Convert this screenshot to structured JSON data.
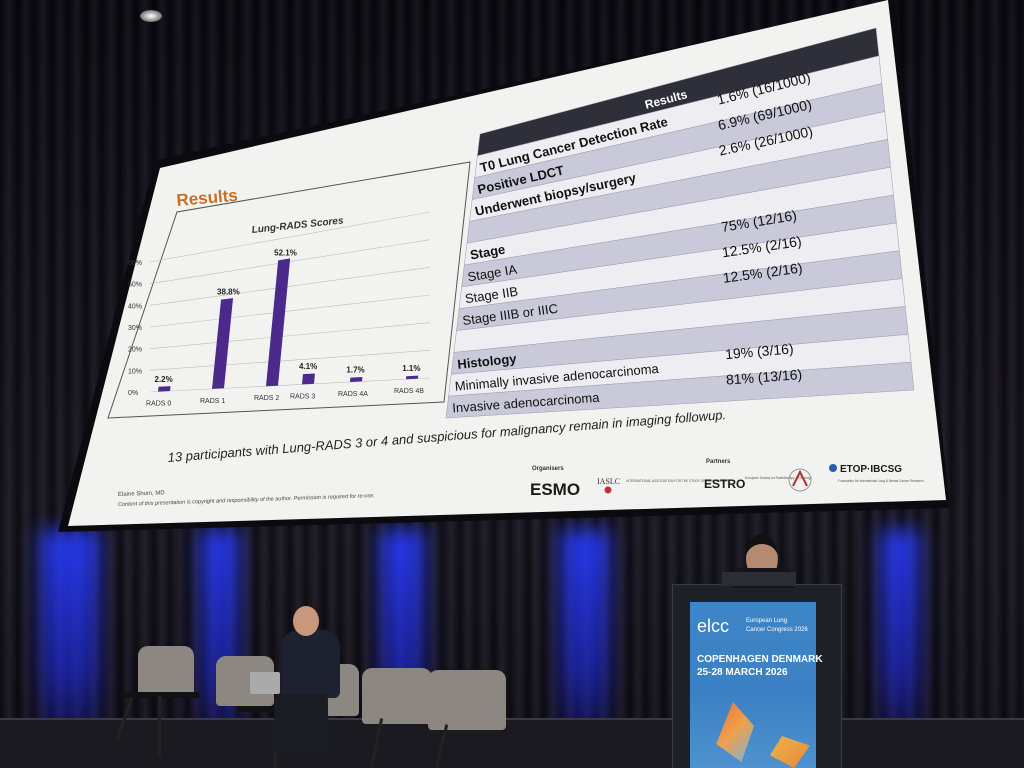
{
  "slide": {
    "section_title": "Results",
    "chart_title": "Lung-RADS Scores",
    "author": "Elaine Shum, MD",
    "copyright": "Content of this presentation is copyright and responsibility of the author. Permission is required for re-use.",
    "footnote": "13 participants with Lung-RADS 3 or 4 and suspicious for malignancy remain in imaging followup.",
    "organisers_label": "Organisers",
    "partners_label": "Partners",
    "logos": {
      "esmo": "ESMO",
      "iaslc": "IASLC",
      "iaslc_sub": "INTERNATIONAL ASSOCIATION FOR THE STUDY OF LUNG CANCER",
      "estro": "ESTRO",
      "estro_sub": "European Society for Radiotherapy & Oncology",
      "etop": "ETOP·IBCSG",
      "etop_sub": "Foundation for International Lung & Breast Cancer Research"
    },
    "table": {
      "header": "Results",
      "rows": [
        {
          "label": "T0 Lung Cancer Detection Rate",
          "value": "1.6% (16/1000)",
          "bold": true
        },
        {
          "label": "Positive LDCT",
          "value": "6.9% (69/1000)",
          "bold": true
        },
        {
          "label": "Underwent biopsy/surgery",
          "value": "2.6% (26/1000)",
          "bold": true
        },
        {
          "label": "",
          "value": "",
          "bold": false
        },
        {
          "label": "Stage",
          "value": "",
          "bold": true
        },
        {
          "label": "Stage IA",
          "value": "75% (12/16)",
          "bold": false
        },
        {
          "label": "Stage IIB",
          "value": "12.5% (2/16)",
          "bold": false
        },
        {
          "label": "Stage IIIB or IIIC",
          "value": "12.5% (2/16)",
          "bold": false
        },
        {
          "label": "",
          "value": "",
          "bold": false
        },
        {
          "label": "Histology",
          "value": "",
          "bold": true
        },
        {
          "label": "Minimally invasive adenocarcinoma",
          "value": "19% (3/16)",
          "bold": false
        },
        {
          "label": "Invasive adenocarcinoma",
          "value": "81% (13/16)",
          "bold": false
        }
      ]
    }
  },
  "chart_data": {
    "type": "bar",
    "title": "Lung-RADS Scores",
    "categories": [
      "RADS 0",
      "RADS 1",
      "RADS 2",
      "RADS 3",
      "RADS 4A",
      "RADS 4B"
    ],
    "values": [
      2.2,
      38.8,
      52.1,
      4.1,
      1.7,
      1.1
    ],
    "value_labels": [
      "2.2%",
      "38.8%",
      "52.1%",
      "4.1%",
      "1.7%",
      "1.1%"
    ],
    "yticks": [
      "0%",
      "10%",
      "20%",
      "30%",
      "40%",
      "50%",
      "60%"
    ],
    "ylim": [
      0,
      60
    ],
    "bar_color": "#4b2a8c"
  },
  "podium": {
    "brand": "elcc",
    "event_line1": "European Lung",
    "event_line2": "Cancer Congress 2026",
    "city": "COPENHAGEN DENMARK",
    "dates": "25-28 MARCH 2026"
  },
  "colors": {
    "accent": "#c8702a",
    "table_header": "#2f2f3a",
    "row_alt": "#c9c9d9"
  }
}
